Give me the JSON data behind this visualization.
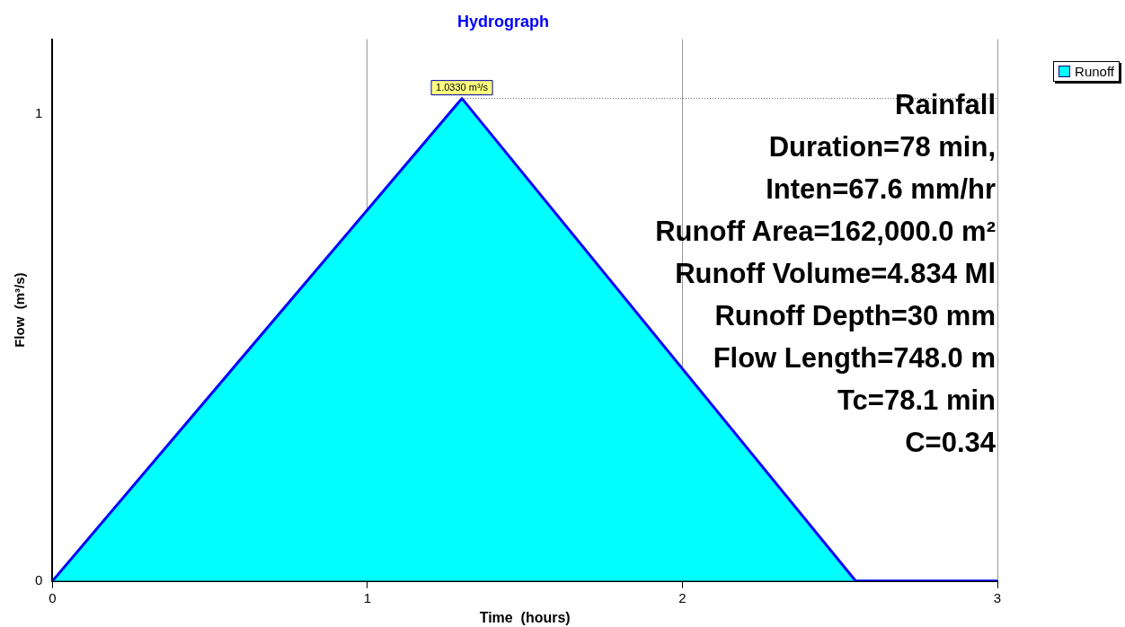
{
  "chart_data": {
    "type": "area",
    "title": "Hydrograph",
    "xlabel": "Time  (hours)",
    "ylabel": "Flow  (m³/s)",
    "x": [
      0,
      1.3,
      2.55,
      3
    ],
    "series": [
      {
        "name": "Runoff",
        "color": "#00ffff",
        "values": [
          0,
          1.033,
          0,
          0
        ]
      }
    ],
    "xlim": [
      0,
      3
    ],
    "xticks": [
      0,
      1,
      2,
      3
    ],
    "ylim": [
      0,
      1.16
    ],
    "yticks": [
      0,
      1
    ],
    "grid": "x",
    "legend": "top right",
    "annotations": [
      {
        "text": "1.0330 m³/s",
        "x": 1.3,
        "y": 1.033
      },
      "Rainfall",
      "Duration=78 min,",
      "Inten=67.6 mm/hr",
      "Runoff Area=162,000.0 m²",
      "Runoff Volume=4.834 Ml",
      "Runoff Depth=30 mm",
      "Flow Length=748.0 m",
      "Tc=78.1 min",
      "C=0.34"
    ]
  }
}
